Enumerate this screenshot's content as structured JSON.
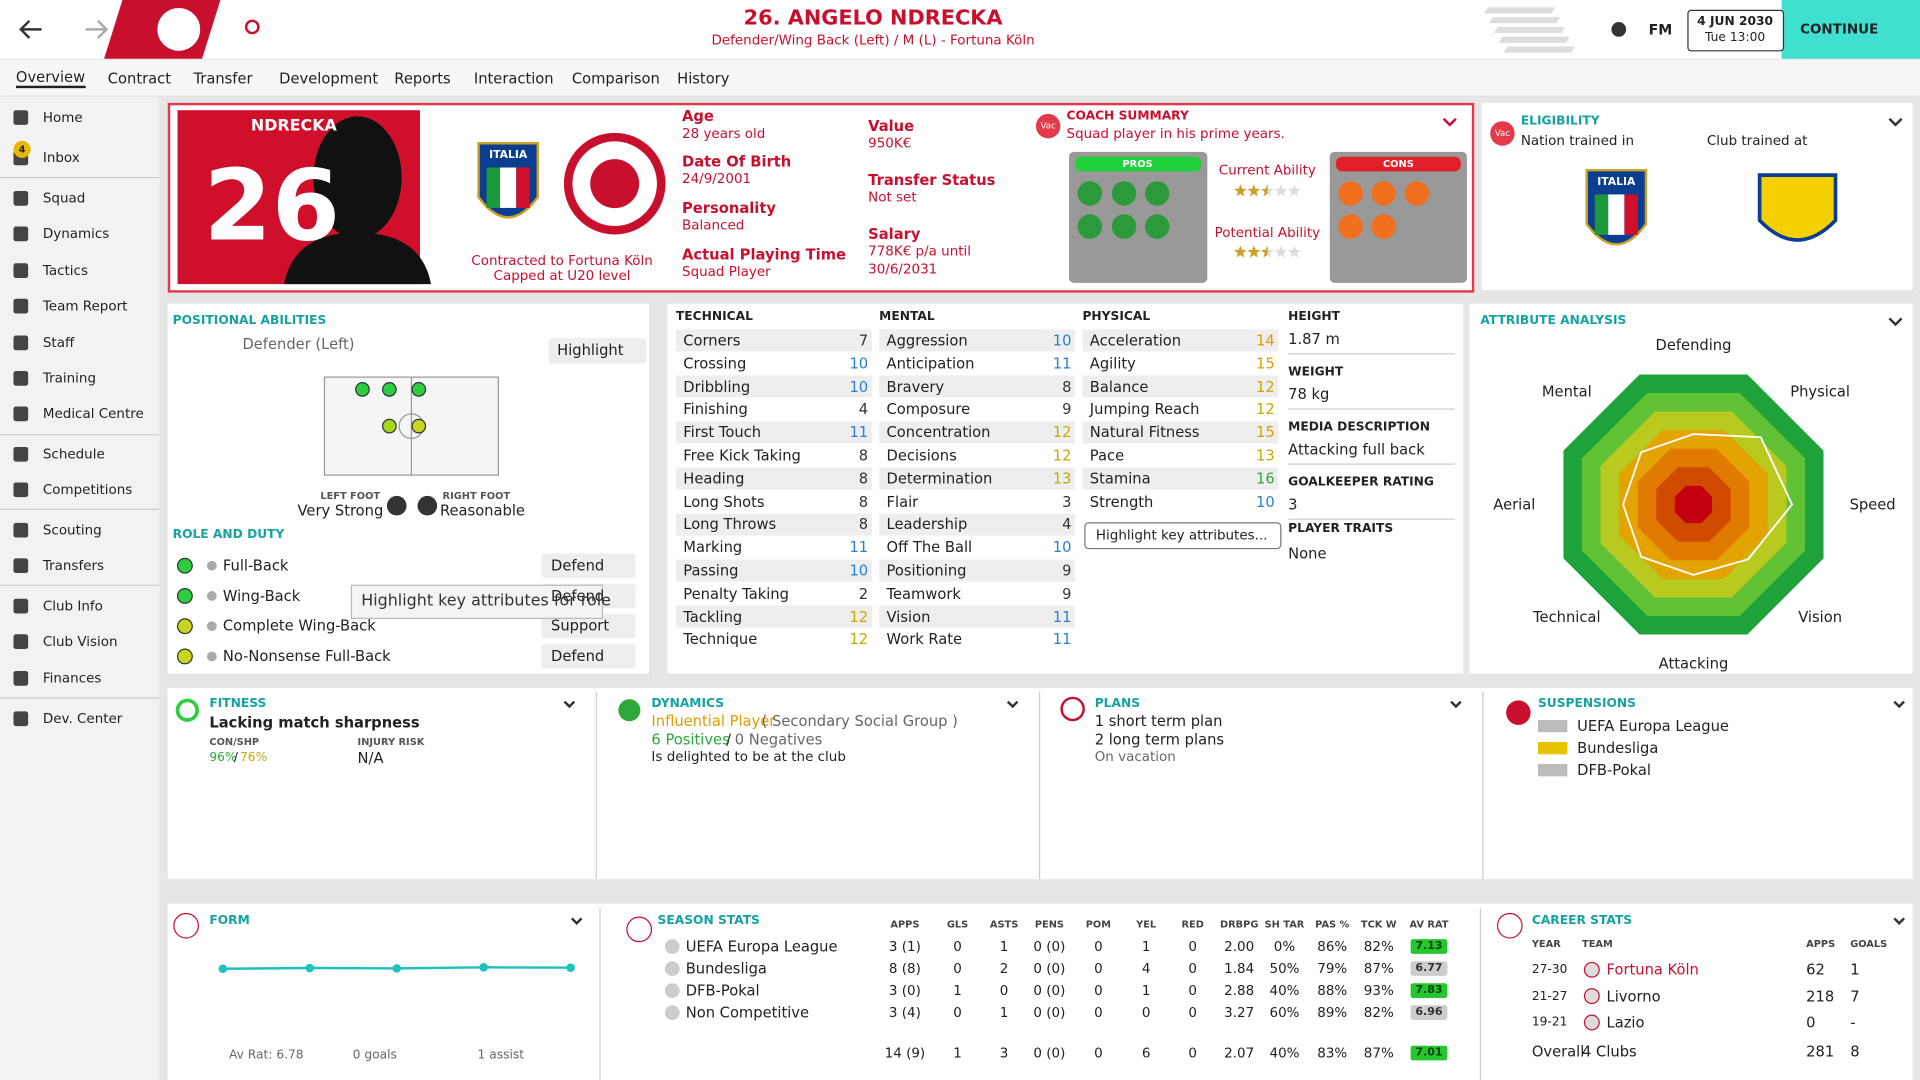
{
  "header": {
    "title": "26. ANGELO NDRECKA",
    "subtitle": "Defender/Wing Back (Left) / M (L) - Fortuna Köln",
    "fm": "FM",
    "date": "4 JUN 2030",
    "time": "Tue 13:00",
    "continue": "CONTINUE"
  },
  "tabs": [
    "Overview",
    "Contract",
    "Transfer",
    "Development",
    "Reports",
    "Interaction",
    "Comparison",
    "History"
  ],
  "sidebar": {
    "badge": "4",
    "items": [
      "Home",
      "Inbox",
      "Squad",
      "Dynamics",
      "Tactics",
      "Team Report",
      "Staff",
      "Training",
      "Medical Centre",
      "Schedule",
      "Competitions",
      "Scouting",
      "Transfers",
      "Club Info",
      "Club Vision",
      "Finances",
      "Dev. Center"
    ]
  },
  "profile": {
    "shirt_name": "NDRECKA",
    "shirt_number": "26",
    "nation_crest": "ITALIA",
    "contract": "Contracted to Fortuna Köln",
    "caps": "Capped at U20 level",
    "info": [
      {
        "label": "Age",
        "value": "28 years old"
      },
      {
        "label": "Date Of Birth",
        "value": "24/9/2001"
      },
      {
        "label": "Personality",
        "value": "Balanced"
      },
      {
        "label": "Actual Playing Time",
        "value": "Squad Player"
      },
      {
        "label": "Value",
        "value": "950K€"
      },
      {
        "label": "Transfer Status",
        "value": "Not set"
      },
      {
        "label": "Salary",
        "value": "778K€ p/a until"
      },
      {
        "label": "",
        "value": "30/6/2031"
      }
    ]
  },
  "coach": {
    "badge": "Vac",
    "title": "COACH SUMMARY",
    "summary": "Squad player in his prime years.",
    "pros": "PROS",
    "cons": "CONS",
    "current_ability": "Current Ability",
    "current_stars": 2.5,
    "potential_ability": "Potential Ability",
    "potential_stars": 2.5,
    "stars_max": 5
  },
  "eligibility": {
    "badge": "Vac",
    "title": "ELIGIBILITY",
    "nation": "Nation trained in",
    "club": "Club trained at",
    "nation_crest": "ITALIA"
  },
  "positional": {
    "title": "POSITIONAL ABILITIES",
    "position": "Defender (Left)",
    "highlight": "Highlight",
    "left_foot_label": "LEFT FOOT",
    "left_foot": "Very Strong",
    "right_foot_label": "RIGHT FOOT",
    "right_foot": "Reasonable",
    "role_title": "ROLE AND DUTY",
    "roles": [
      {
        "role": "Full-Back",
        "duty": "Defend"
      },
      {
        "role": "Wing-Back",
        "duty": "Defend"
      },
      {
        "role": "Complete Wing-Back",
        "duty": "Support"
      },
      {
        "role": "No-Nonsense Full-Back",
        "duty": "Defend"
      }
    ],
    "tooltip": "Highlight key attributes for role"
  },
  "attributes": {
    "groups": [
      {
        "title": "TECHNICAL",
        "names": [
          "Corners",
          "Crossing",
          "Dribbling",
          "Finishing",
          "First Touch",
          "Free Kick Taking",
          "Heading",
          "Long Shots",
          "Long Throws",
          "Marking",
          "Passing",
          "Penalty Taking",
          "Tackling",
          "Technique"
        ],
        "values": [
          7,
          10,
          10,
          4,
          11,
          8,
          8,
          8,
          8,
          11,
          10,
          2,
          12,
          12
        ]
      },
      {
        "title": "MENTAL",
        "names": [
          "Aggression",
          "Anticipation",
          "Bravery",
          "Composure",
          "Concentration",
          "Decisions",
          "Determination",
          "Flair",
          "Leadership",
          "Off The Ball",
          "Positioning",
          "Teamwork",
          "Vision",
          "Work Rate"
        ],
        "values": [
          10,
          11,
          8,
          9,
          12,
          12,
          13,
          3,
          4,
          10,
          9,
          9,
          11,
          11
        ]
      },
      {
        "title": "PHYSICAL",
        "names": [
          "Acceleration",
          "Agility",
          "Balance",
          "Jumping Reach",
          "Natural Fitness",
          "Pace",
          "Stamina",
          "Strength"
        ],
        "values": [
          14,
          15,
          12,
          12,
          15,
          13,
          16,
          10
        ]
      }
    ],
    "highlight": "Highlight key attributes...",
    "details": [
      {
        "label": "HEIGHT",
        "value": "1.87 m"
      },
      {
        "label": "WEIGHT",
        "value": "78 kg"
      },
      {
        "label": "MEDIA DESCRIPTION",
        "value": "Attacking full back"
      },
      {
        "label": "GOALKEEPER RATING",
        "value": "3"
      },
      {
        "label": "PLAYER TRAITS",
        "value": "None"
      }
    ]
  },
  "chart_data": {
    "type": "radar",
    "title": "ATTRIBUTE ANALYSIS",
    "categories": [
      "Defending",
      "Physical",
      "Speed",
      "Vision",
      "Attacking",
      "Technical",
      "Aerial",
      "Mental"
    ],
    "values": [
      10,
      13.5,
      14,
      11,
      10,
      10.5,
      10,
      10.5
    ],
    "rlim": [
      0,
      20
    ],
    "color": "#ffffff"
  },
  "fitness": {
    "title": "FITNESS",
    "status": "Lacking match sharpness",
    "con_label": "CON/SHP",
    "con": "96%",
    "sep": "/",
    "shp": "76%",
    "injury_label": "INJURY RISK",
    "injury": "N/A"
  },
  "dynamics": {
    "title": "DYNAMICS",
    "status": "Influential Player",
    "group": "( Secondary Social Group )",
    "positives": "6 Positives",
    "sep": "/",
    "negatives": "0 Negatives",
    "note": "Is delighted to be at the club"
  },
  "plans": {
    "title": "PLANS",
    "short": "1 short term plan",
    "long": "2 long term plans",
    "note": "On vacation"
  },
  "suspensions": {
    "title": "SUSPENSIONS",
    "competitions": [
      "UEFA Europa League",
      "Bundesliga",
      "DFB-Pokal"
    ]
  },
  "form": {
    "type": "line",
    "title": "FORM",
    "values": [
      6.7,
      6.8,
      6.75,
      6.9,
      6.85
    ],
    "ylim": [
      0,
      10
    ],
    "color": "#1ec0c0",
    "av_rat": "Av Rat: 6.78",
    "goals": "0 goals",
    "assists": "1 assist"
  },
  "season_stats": {
    "title": "SEASON STATS",
    "headers": [
      "APPS",
      "GLS",
      "ASTS",
      "PENS",
      "POM",
      "YEL",
      "RED",
      "DRBPG",
      "SH TAR",
      "PAS %",
      "TCK W",
      "AV RAT"
    ],
    "rows": [
      {
        "name": "UEFA Europa League",
        "cells": [
          "3 (1)",
          "0",
          "1",
          "0 (0)",
          "0",
          "1",
          "0",
          "2.00",
          "0%",
          "86%",
          "82%",
          "7.13"
        ]
      },
      {
        "name": "Bundesliga",
        "cells": [
          "8 (8)",
          "0",
          "2",
          "0 (0)",
          "0",
          "4",
          "0",
          "1.84",
          "50%",
          "79%",
          "87%",
          "6.77"
        ]
      },
      {
        "name": "DFB-Pokal",
        "cells": [
          "3 (0)",
          "1",
          "0",
          "0 (0)",
          "0",
          "1",
          "0",
          "2.88",
          "40%",
          "88%",
          "93%",
          "7.83"
        ]
      },
      {
        "name": "Non Competitive",
        "cells": [
          "3 (4)",
          "0",
          "1",
          "0 (0)",
          "0",
          "0",
          "0",
          "3.27",
          "60%",
          "89%",
          "82%",
          "6.96"
        ]
      }
    ],
    "total": [
      "14 (9)",
      "1",
      "3",
      "0 (0)",
      "0",
      "6",
      "0",
      "2.07",
      "40%",
      "83%",
      "87%",
      "7.01"
    ]
  },
  "career_stats": {
    "title": "CAREER STATS",
    "headers": [
      "YEAR",
      "TEAM",
      "APPS",
      "GOALS"
    ],
    "rows": [
      [
        "27-30",
        "Fortuna Köln",
        "62",
        "1"
      ],
      [
        "21-27",
        "Livorno",
        "218",
        "7"
      ],
      [
        "19-21",
        "Lazio",
        "0",
        "-"
      ]
    ],
    "overall": [
      "Overall",
      "4 Clubs",
      "281",
      "8"
    ]
  }
}
